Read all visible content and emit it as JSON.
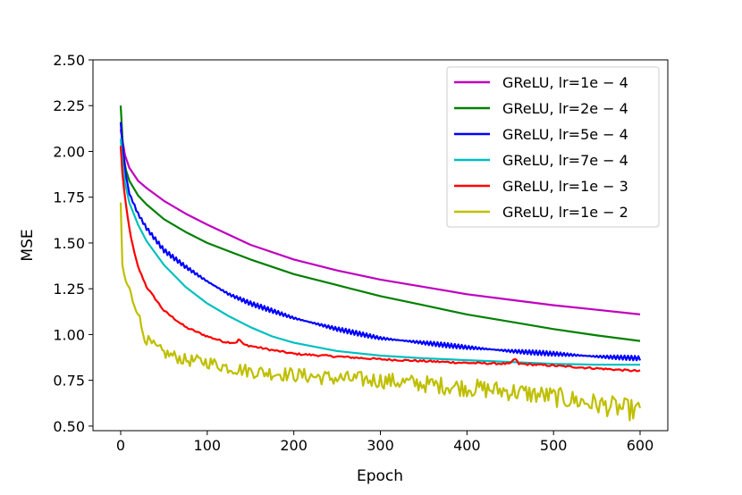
{
  "chart_data": {
    "type": "line",
    "xlabel": "Epoch",
    "ylabel": "MSE",
    "xlim": [
      -32,
      632
    ],
    "ylim": [
      0.475,
      2.5
    ],
    "xticks": [
      0,
      100,
      200,
      300,
      400,
      500,
      600
    ],
    "xtick_labels": [
      "0",
      "100",
      "200",
      "300",
      "400",
      "500",
      "600"
    ],
    "yticks": [
      0.5,
      0.75,
      1.0,
      1.25,
      1.5,
      1.75,
      2.0,
      2.25,
      2.5
    ],
    "ytick_labels": [
      "0.50",
      "0.75",
      "1.00",
      "1.25",
      "1.50",
      "1.75",
      "2.00",
      "2.25",
      "2.50"
    ],
    "grid": false,
    "legend_position": "top-right",
    "series": [
      {
        "name": "GReLU, lr=1e − 4",
        "color": "#bf00bf",
        "points": [
          [
            0,
            2.12
          ],
          [
            5,
            1.98
          ],
          [
            10,
            1.91
          ],
          [
            20,
            1.84
          ],
          [
            30,
            1.8
          ],
          [
            50,
            1.73
          ],
          [
            75,
            1.66
          ],
          [
            100,
            1.6
          ],
          [
            150,
            1.49
          ],
          [
            200,
            1.41
          ],
          [
            250,
            1.35
          ],
          [
            300,
            1.3
          ],
          [
            350,
            1.26
          ],
          [
            400,
            1.22
          ],
          [
            450,
            1.19
          ],
          [
            500,
            1.16
          ],
          [
            550,
            1.135
          ],
          [
            600,
            1.11
          ]
        ]
      },
      {
        "name": "GReLU, lr=2e − 4",
        "color": "#008000",
        "points": [
          [
            0,
            2.25
          ],
          [
            3,
            1.99
          ],
          [
            6,
            1.9
          ],
          [
            10,
            1.84
          ],
          [
            20,
            1.76
          ],
          [
            30,
            1.71
          ],
          [
            50,
            1.63
          ],
          [
            75,
            1.56
          ],
          [
            100,
            1.5
          ],
          [
            150,
            1.41
          ],
          [
            200,
            1.33
          ],
          [
            250,
            1.27
          ],
          [
            300,
            1.21
          ],
          [
            350,
            1.16
          ],
          [
            400,
            1.11
          ],
          [
            450,
            1.07
          ],
          [
            500,
            1.03
          ],
          [
            550,
            0.995
          ],
          [
            600,
            0.965
          ]
        ]
      },
      {
        "name": "GReLU, lr=5e − 4",
        "color": "#0000ff",
        "points": [
          [
            0,
            2.16
          ],
          [
            3,
            1.98
          ],
          [
            6,
            1.87
          ],
          [
            10,
            1.77
          ],
          [
            20,
            1.66
          ],
          [
            30,
            1.58
          ],
          [
            50,
            1.46
          ],
          [
            75,
            1.37
          ],
          [
            100,
            1.29
          ],
          [
            125,
            1.22
          ],
          [
            150,
            1.17
          ],
          [
            175,
            1.13
          ],
          [
            200,
            1.09
          ],
          [
            250,
            1.03
          ],
          [
            300,
            0.98
          ],
          [
            350,
            0.955
          ],
          [
            400,
            0.93
          ],
          [
            450,
            0.91
          ],
          [
            500,
            0.895
          ],
          [
            550,
            0.88
          ],
          [
            600,
            0.87
          ]
        ],
        "jitter": 0.012
      },
      {
        "name": "GReLU, lr=7e − 4",
        "color": "#00bfbf",
        "points": [
          [
            0,
            2.07
          ],
          [
            2,
            1.95
          ],
          [
            5,
            1.83
          ],
          [
            10,
            1.72
          ],
          [
            20,
            1.6
          ],
          [
            30,
            1.51
          ],
          [
            50,
            1.38
          ],
          [
            75,
            1.26
          ],
          [
            100,
            1.17
          ],
          [
            125,
            1.1
          ],
          [
            150,
            1.04
          ],
          [
            175,
            0.99
          ],
          [
            200,
            0.955
          ],
          [
            250,
            0.91
          ],
          [
            300,
            0.885
          ],
          [
            350,
            0.87
          ],
          [
            400,
            0.86
          ],
          [
            450,
            0.85
          ],
          [
            500,
            0.84
          ],
          [
            550,
            0.835
          ],
          [
            600,
            0.835
          ]
        ]
      },
      {
        "name": "GReLU, lr=1e − 3",
        "color": "#ff0000",
        "points": [
          [
            0,
            2.03
          ],
          [
            2,
            1.88
          ],
          [
            5,
            1.74
          ],
          [
            10,
            1.58
          ],
          [
            15,
            1.46
          ],
          [
            20,
            1.37
          ],
          [
            30,
            1.26
          ],
          [
            50,
            1.13
          ],
          [
            75,
            1.04
          ],
          [
            100,
            0.99
          ],
          [
            120,
            0.96
          ],
          [
            133,
            0.955
          ],
          [
            137,
            0.975
          ],
          [
            142,
            0.945
          ],
          [
            175,
            0.915
          ],
          [
            200,
            0.895
          ],
          [
            250,
            0.88
          ],
          [
            300,
            0.865
          ],
          [
            350,
            0.855
          ],
          [
            400,
            0.845
          ],
          [
            450,
            0.84
          ],
          [
            455,
            0.87
          ],
          [
            460,
            0.84
          ],
          [
            500,
            0.83
          ],
          [
            550,
            0.815
          ],
          [
            600,
            0.8
          ]
        ],
        "jitter": 0.005
      },
      {
        "name": "GReLU, lr=1e − 2",
        "color": "#bfbf00",
        "points": [
          [
            0,
            1.72
          ],
          [
            2,
            1.38
          ],
          [
            5,
            1.3
          ],
          [
            10,
            1.25
          ],
          [
            15,
            1.17
          ],
          [
            20,
            1.12
          ],
          [
            25,
            1.02
          ],
          [
            30,
            0.97
          ],
          [
            40,
            0.93
          ],
          [
            50,
            0.9
          ],
          [
            75,
            0.86
          ],
          [
            100,
            0.85
          ],
          [
            125,
            0.82
          ],
          [
            150,
            0.8
          ],
          [
            175,
            0.79
          ],
          [
            200,
            0.78
          ],
          [
            250,
            0.76
          ],
          [
            300,
            0.75
          ],
          [
            350,
            0.73
          ],
          [
            400,
            0.71
          ],
          [
            450,
            0.69
          ],
          [
            500,
            0.66
          ],
          [
            550,
            0.62
          ],
          [
            600,
            0.58
          ]
        ],
        "jitter": 0.06
      }
    ]
  }
}
